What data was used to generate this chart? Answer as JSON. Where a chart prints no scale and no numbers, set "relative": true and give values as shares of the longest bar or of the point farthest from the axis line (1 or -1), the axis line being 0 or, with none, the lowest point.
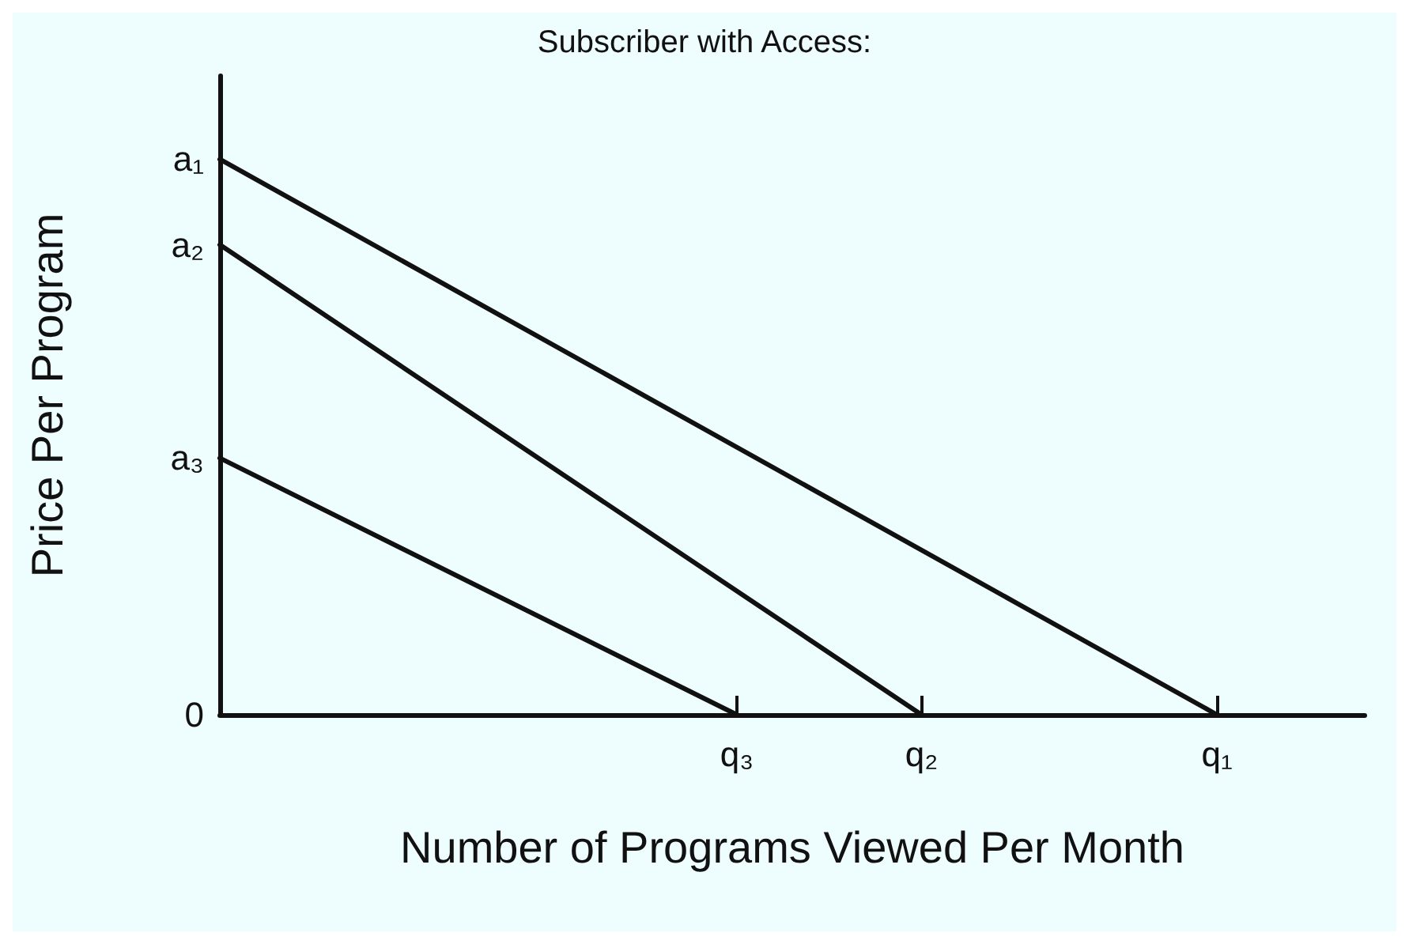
{
  "chart_data": {
    "type": "line",
    "title": "Subscriber with Access:",
    "xlabel": "Number of Programs Viewed Per Month",
    "ylabel": "Price Per Program",
    "relative": true,
    "marker": "none",
    "line_style": "solid",
    "grid": false,
    "categories": [
      null,
      null,
      null,
      null,
      null,
      null,
      null,
      null,
      null,
      null,
      null,
      null,
      null,
      null,
      "q₃",
      null,
      null,
      null,
      null,
      "q₂",
      null,
      null,
      null,
      null,
      null,
      null,
      null,
      "q₁",
      null,
      null,
      null,
      null
    ],
    "series": [
      {
        "color": "#111111",
        "values": [
          1,
          null,
          null,
          null,
          null,
          null,
          null,
          null,
          null,
          null,
          null,
          null,
          null,
          null,
          null,
          null,
          null,
          null,
          null,
          null,
          null,
          null,
          null,
          null,
          null,
          null,
          null,
          0,
          null,
          null,
          null,
          null
        ]
      },
      {
        "color": "#111111",
        "values": [
          0.846,
          null,
          null,
          null,
          null,
          null,
          null,
          null,
          null,
          null,
          null,
          null,
          null,
          null,
          null,
          null,
          null,
          null,
          null,
          0,
          null,
          null,
          null,
          null,
          null,
          null,
          null,
          null,
          null,
          null,
          null,
          null
        ]
      },
      {
        "color": "#111111",
        "values": [
          0.462,
          null,
          null,
          null,
          null,
          null,
          null,
          null,
          null,
          null,
          null,
          null,
          null,
          null,
          0,
          null,
          null,
          null,
          null,
          null,
          null,
          null,
          null,
          null,
          null,
          null,
          null,
          null,
          null,
          null,
          null,
          null
        ]
      }
    ],
    "annotations": [
      "a₁",
      "a₂",
      "a₃",
      "0"
    ]
  }
}
